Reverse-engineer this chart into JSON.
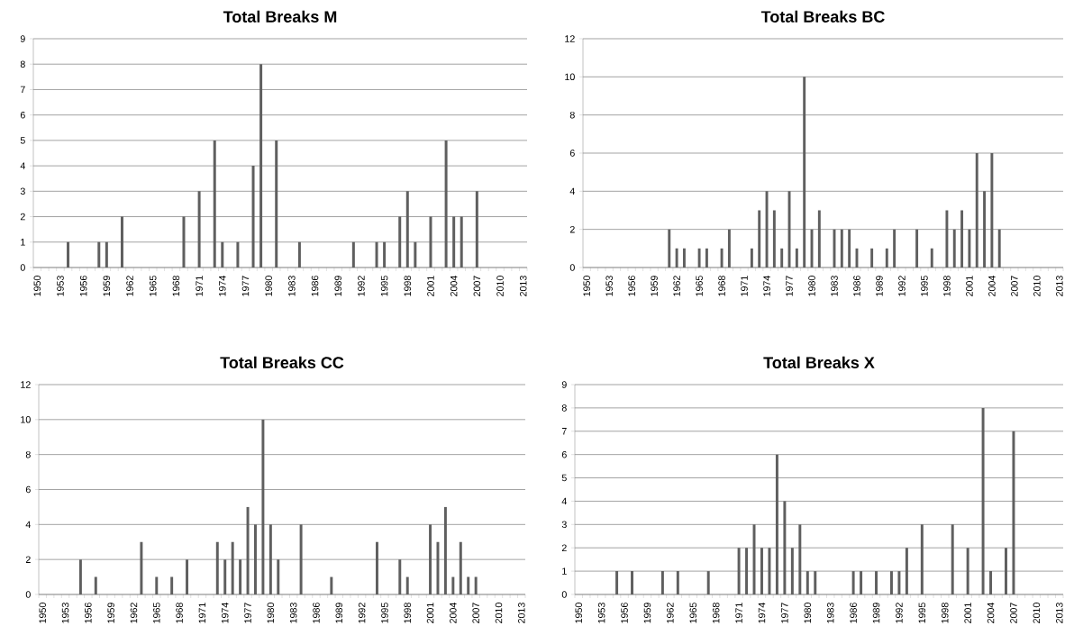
{
  "chart_data": [
    {
      "type": "bar",
      "title": "**Total Breaks M**",
      "color": "#5f5f5f",
      "grid": "y",
      "ylim": [
        0,
        9
      ],
      "yticks": [
        0,
        1,
        2,
        3,
        4,
        5,
        6,
        7,
        8,
        9
      ],
      "categories": [
        "1950",
        null,
        null,
        "1953",
        null,
        null,
        "1956",
        null,
        null,
        "1959",
        null,
        null,
        "1962",
        null,
        null,
        "1965",
        null,
        null,
        "1968",
        null,
        null,
        "1971",
        null,
        null,
        "1974",
        null,
        null,
        "1977",
        null,
        null,
        "1980",
        null,
        null,
        "1983",
        null,
        null,
        "1986",
        null,
        null,
        "1989",
        null,
        null,
        "1992",
        null,
        null,
        "1995",
        null,
        null,
        "1998",
        null,
        null,
        "2001",
        null,
        null,
        "2004",
        null,
        null,
        "2007",
        null,
        null,
        "2010",
        null,
        null,
        "2013"
      ],
      "values": [
        0,
        0,
        0,
        0,
        1,
        0,
        0,
        0,
        1,
        1,
        0,
        2,
        0,
        0,
        0,
        0,
        0,
        0,
        0,
        2,
        0,
        3,
        0,
        5,
        1,
        0,
        1,
        0,
        4,
        8,
        0,
        5,
        0,
        0,
        1,
        0,
        0,
        0,
        0,
        0,
        0,
        1,
        0,
        0,
        1,
        1,
        0,
        2,
        3,
        1,
        0,
        2,
        0,
        5,
        2,
        2,
        0,
        3,
        0,
        0,
        0,
        0,
        0,
        0
      ]
    },
    {
      "type": "bar",
      "title": "**Total Breaks BC**",
      "color": "#5f5f5f",
      "grid": "y",
      "ylim": [
        0,
        12
      ],
      "yticks": [
        0,
        2,
        4,
        6,
        8,
        10,
        12
      ],
      "categories": [
        "1950",
        null,
        null,
        "1953",
        null,
        null,
        "1956",
        null,
        null,
        "1959",
        null,
        null,
        "1962",
        null,
        null,
        "1965",
        null,
        null,
        "1968",
        null,
        null,
        "1971",
        null,
        null,
        "1974",
        null,
        null,
        "1977",
        null,
        null,
        "1980",
        null,
        null,
        "1983",
        null,
        null,
        "1986",
        null,
        null,
        "1989",
        null,
        null,
        "1992",
        null,
        null,
        "1995",
        null,
        null,
        "1998",
        null,
        null,
        "2001",
        null,
        null,
        "2004",
        null,
        null,
        "2007",
        null,
        null,
        "2010",
        null,
        null,
        "2013"
      ],
      "values": [
        0,
        0,
        0,
        0,
        0,
        0,
        0,
        0,
        0,
        0,
        0,
        2,
        1,
        1,
        0,
        1,
        1,
        0,
        1,
        2,
        0,
        0,
        1,
        3,
        4,
        3,
        1,
        4,
        1,
        10,
        2,
        3,
        0,
        2,
        2,
        2,
        1,
        0,
        1,
        0,
        1,
        2,
        0,
        0,
        2,
        0,
        1,
        0,
        3,
        2,
        3,
        2,
        6,
        4,
        6,
        2,
        0,
        0,
        0,
        0,
        0,
        0,
        0,
        0
      ]
    },
    {
      "type": "bar",
      "title": "**Total Breaks CC**",
      "color": "#5f5f5f",
      "grid": "y",
      "ylim": [
        0,
        12
      ],
      "yticks": [
        0,
        2,
        4,
        6,
        8,
        10,
        12
      ],
      "categories": [
        "1950",
        null,
        null,
        "1953",
        null,
        null,
        "1956",
        null,
        null,
        "1959",
        null,
        null,
        "1962",
        null,
        null,
        "1965",
        null,
        null,
        "1968",
        null,
        null,
        "1971",
        null,
        null,
        "1974",
        null,
        null,
        "1977",
        null,
        null,
        "1980",
        null,
        null,
        "1983",
        null,
        null,
        "1986",
        null,
        null,
        "1989",
        null,
        null,
        "1992",
        null,
        null,
        "1995",
        null,
        null,
        "1998",
        null,
        null,
        "2001",
        null,
        null,
        "2004",
        null,
        null,
        "2007",
        null,
        null,
        "2010",
        null,
        null,
        "2013"
      ],
      "values": [
        0,
        0,
        0,
        0,
        0,
        2,
        0,
        1,
        0,
        0,
        0,
        0,
        0,
        3,
        0,
        1,
        0,
        1,
        0,
        2,
        0,
        0,
        0,
        3,
        2,
        3,
        2,
        5,
        4,
        10,
        4,
        2,
        0,
        0,
        4,
        0,
        0,
        0,
        1,
        0,
        0,
        0,
        0,
        0,
        3,
        0,
        0,
        2,
        1,
        0,
        0,
        4,
        3,
        5,
        1,
        3,
        1,
        1,
        0,
        0,
        0,
        0,
        0,
        0
      ]
    },
    {
      "type": "bar",
      "title": "**Total Breaks X**",
      "color": "#5f5f5f",
      "grid": "y",
      "ylim": [
        0,
        9
      ],
      "yticks": [
        0,
        1,
        2,
        3,
        4,
        5,
        6,
        7,
        8,
        9
      ],
      "categories": [
        "1950",
        null,
        null,
        "1953",
        null,
        null,
        "1956",
        null,
        null,
        "1959",
        null,
        null,
        "1962",
        null,
        null,
        "1965",
        null,
        null,
        "1968",
        null,
        null,
        "1971",
        null,
        null,
        "1974",
        null,
        null,
        "1977",
        null,
        null,
        "1980",
        null,
        null,
        "1983",
        null,
        null,
        "1986",
        null,
        null,
        "1989",
        null,
        null,
        "1992",
        null,
        null,
        "1995",
        null,
        null,
        "1998",
        null,
        null,
        "2001",
        null,
        null,
        "2004",
        null,
        null,
        "2007",
        null,
        null,
        "2010",
        null,
        null,
        "2013"
      ],
      "values": [
        0,
        0,
        0,
        0,
        0,
        1,
        0,
        1,
        0,
        0,
        0,
        1,
        0,
        1,
        0,
        0,
        0,
        1,
        0,
        0,
        0,
        2,
        2,
        3,
        2,
        2,
        6,
        4,
        2,
        3,
        1,
        1,
        0,
        0,
        0,
        0,
        1,
        1,
        0,
        1,
        0,
        1,
        1,
        2,
        0,
        3,
        0,
        0,
        0,
        3,
        0,
        2,
        0,
        8,
        1,
        0,
        2,
        7,
        0,
        0,
        0,
        0,
        0,
        0
      ]
    }
  ]
}
